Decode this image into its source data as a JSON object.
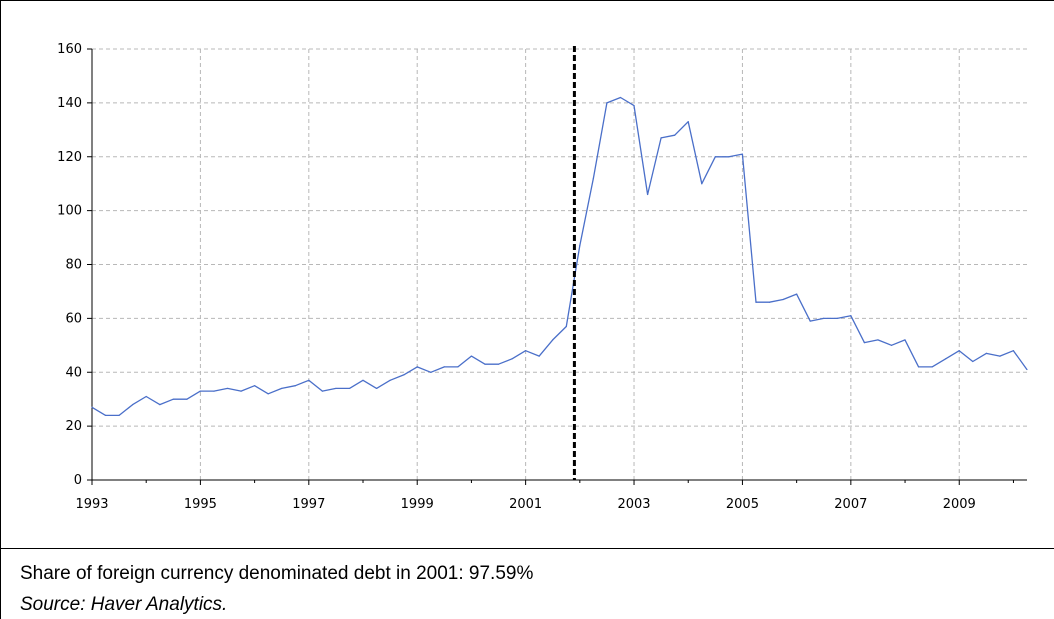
{
  "chart_data": {
    "type": "line",
    "title": "",
    "xlabel": "",
    "ylabel": "",
    "xlim": [
      1993,
      2010.25
    ],
    "ylim": [
      0,
      160
    ],
    "yticks": [
      0,
      20,
      40,
      60,
      80,
      100,
      120,
      140,
      160
    ],
    "xticks": [
      "1993",
      "1995",
      "1997",
      "1999",
      "2001",
      "2003",
      "2005",
      "2007",
      "2009"
    ],
    "grid": true,
    "legend": "none",
    "line_color": "#4a6fc9",
    "vline": {
      "x": 2001.9,
      "style": "dashed",
      "color": "#000000"
    },
    "series": [
      {
        "x": [
          1993.0,
          1993.25,
          1993.5,
          1993.75,
          1994.0,
          1994.25,
          1994.5,
          1994.75,
          1995.0,
          1995.25,
          1995.5,
          1995.75,
          1996.0,
          1996.25,
          1996.5,
          1996.75,
          1997.0,
          1997.25,
          1997.5,
          1997.75,
          1998.0,
          1998.25,
          1998.5,
          1998.75,
          1999.0,
          1999.25,
          1999.5,
          1999.75,
          2000.0,
          2000.25,
          2000.5,
          2000.75,
          2001.0,
          2001.25,
          2001.5,
          2001.75,
          2002.0,
          2002.25,
          2002.5,
          2002.75,
          2003.0,
          2003.25,
          2003.5,
          2003.75,
          2004.0,
          2004.25,
          2004.5,
          2004.75,
          2005.0,
          2005.25,
          2005.5,
          2005.75,
          2006.0,
          2006.25,
          2006.5,
          2006.75,
          2007.0,
          2007.25,
          2007.5,
          2007.75,
          2008.0,
          2008.25,
          2008.5,
          2008.75,
          2009.0,
          2009.25,
          2009.5,
          2009.75,
          2010.0,
          2010.25
        ],
        "values": [
          27,
          24,
          24,
          28,
          31,
          28,
          30,
          30,
          33,
          33,
          34,
          33,
          35,
          32,
          34,
          35,
          37,
          33,
          34,
          34,
          37,
          34,
          37,
          39,
          42,
          40,
          42,
          42,
          46,
          43,
          43,
          45,
          48,
          46,
          52,
          57,
          87,
          112,
          140,
          142,
          139,
          106,
          127,
          128,
          133,
          110,
          120,
          120,
          121,
          66,
          66,
          67,
          69,
          59,
          60,
          60,
          61,
          51,
          52,
          50,
          52,
          42,
          42,
          45,
          48,
          44,
          47,
          46,
          48,
          41
        ]
      }
    ]
  },
  "captions": {
    "note": "Share of foreign currency denominated debt in 2001: 97.59%",
    "source": "Source: Haver Analytics."
  }
}
